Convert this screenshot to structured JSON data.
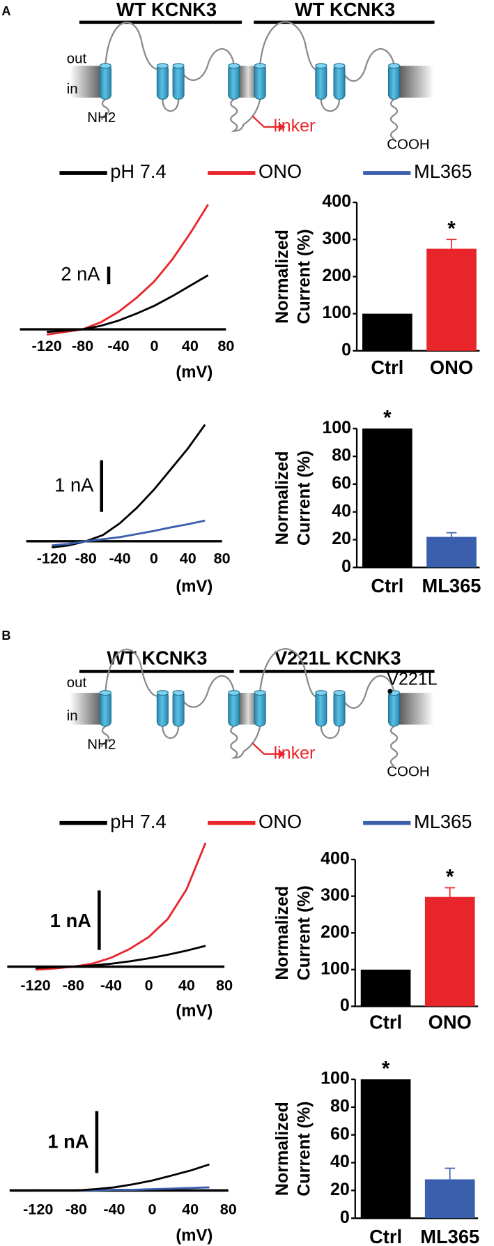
{
  "panels": [
    {
      "label": "A",
      "titles": [
        "WT KCNK3",
        "WT KCNK3"
      ],
      "diagram": {
        "out": "out",
        "in": "in",
        "n_term": "NH2",
        "linker": "linker",
        "c_term": "COOH"
      },
      "legend": [
        {
          "name": "pH 7.4",
          "color": "#000000"
        },
        {
          "name": "ONO",
          "color": "#e8252a"
        },
        {
          "name": "ML365",
          "color": "#3a5fad"
        }
      ]
    },
    {
      "label": "B",
      "titles": [
        "WT KCNK3",
        "V221L KCNK3"
      ],
      "diagram": {
        "out": "out",
        "in": "in",
        "n_term": "NH2",
        "linker": "linker",
        "c_term": "COOH",
        "mutation": "V221L"
      },
      "legend": [
        {
          "name": "pH 7.4",
          "color": "#000000"
        },
        {
          "name": "ONO",
          "color": "#e8252a"
        },
        {
          "name": "ML365",
          "color": "#3a5fad"
        }
      ]
    }
  ],
  "chart_data": [
    {
      "type": "iv",
      "xlabel": "(mV)",
      "x": [
        -120,
        -100,
        -80,
        -60,
        -40,
        -20,
        0,
        20,
        40,
        60
      ],
      "xlim": [
        -150,
        80
      ],
      "xticks": [
        -120,
        -80,
        -40,
        0,
        40,
        80
      ],
      "scale_bar": {
        "value": 2,
        "label": "2 nA"
      },
      "series": [
        {
          "color": "#e8252a",
          "values": [
            -0.6,
            -0.3,
            0,
            0.8,
            2,
            3.6,
            5.5,
            8,
            11,
            14.3
          ]
        },
        {
          "color": "#000000",
          "values": [
            -0.3,
            -0.15,
            0,
            0.4,
            1,
            1.8,
            2.7,
            3.8,
            5,
            6.2
          ]
        }
      ]
    },
    {
      "type": "bar",
      "ylabel": [
        "Normalized",
        "Current (%)"
      ],
      "categories": [
        "Ctrl",
        "ONO"
      ],
      "values": [
        100,
        275
      ],
      "errors": [
        null,
        25
      ],
      "colors": [
        "#000000",
        "#e8252a"
      ],
      "significance": "*",
      "ylim": [
        0,
        400
      ],
      "yticks": [
        0,
        100,
        200,
        300,
        400
      ]
    },
    {
      "type": "iv",
      "xlabel": "(mV)",
      "x": [
        -120,
        -100,
        -80,
        -60,
        -40,
        -20,
        0,
        20,
        40,
        60
      ],
      "xlim": [
        -150,
        80
      ],
      "xticks": [
        -120,
        -80,
        -40,
        0,
        40,
        80
      ],
      "scale_bar": {
        "value": 1,
        "label": "1 nA"
      },
      "series": [
        {
          "color": "#000000",
          "values": [
            -0.12,
            -0.08,
            0,
            0.12,
            0.35,
            0.65,
            1.0,
            1.4,
            1.8,
            2.26
          ]
        },
        {
          "color": "#3a5fad",
          "values": [
            -0.08,
            -0.05,
            0,
            0.04,
            0.08,
            0.14,
            0.2,
            0.27,
            0.33,
            0.4
          ]
        }
      ]
    },
    {
      "type": "bar",
      "ylabel": [
        "Normalized",
        "Current (%)"
      ],
      "categories": [
        "Ctrl",
        "ML365"
      ],
      "values": [
        100,
        22
      ],
      "errors": [
        null,
        3
      ],
      "colors": [
        "#000000",
        "#3a5fad"
      ],
      "significance": "*",
      "ylim": [
        0,
        100
      ],
      "yticks": [
        0,
        20,
        40,
        60,
        80,
        100
      ]
    },
    {
      "type": "iv",
      "xlabel": "(mV)",
      "x": [
        -120,
        -100,
        -80,
        -60,
        -40,
        -20,
        0,
        20,
        40,
        60
      ],
      "xlim": [
        -150,
        80
      ],
      "xticks": [
        -120,
        -80,
        -40,
        0,
        40,
        80
      ],
      "scale_bar": {
        "value": 1,
        "label": "1 nA"
      },
      "series": [
        {
          "color": "#e8252a",
          "values": [
            -0.05,
            -0.03,
            0,
            0.05,
            0.15,
            0.3,
            0.5,
            0.8,
            1.3,
            2.08
          ]
        },
        {
          "color": "#000000",
          "values": [
            -0.02,
            -0.01,
            0,
            0.02,
            0.05,
            0.09,
            0.14,
            0.2,
            0.27,
            0.35
          ]
        }
      ]
    },
    {
      "type": "bar",
      "ylabel": [
        "Normalized",
        "Current (%)"
      ],
      "categories": [
        "Ctrl",
        "ONO"
      ],
      "values": [
        100,
        298
      ],
      "errors": [
        null,
        25
      ],
      "colors": [
        "#000000",
        "#e8252a"
      ],
      "significance": "*",
      "ylim": [
        0,
        400
      ],
      "yticks": [
        0,
        100,
        200,
        300,
        400
      ]
    },
    {
      "type": "iv",
      "xlabel": "(mV)",
      "x": [
        -120,
        -100,
        -80,
        -60,
        -40,
        -20,
        0,
        20,
        40,
        60
      ],
      "xlim": [
        -150,
        80
      ],
      "xticks": [
        -120,
        -80,
        -40,
        0,
        40,
        80
      ],
      "scale_bar": {
        "value": 1,
        "label": "1 nA"
      },
      "series": [
        {
          "color": "#3a5fad",
          "values": [
            0,
            0,
            0,
            0,
            0.01,
            0.01,
            0.02,
            0.03,
            0.04,
            0.05
          ]
        },
        {
          "color": "#000000",
          "values": [
            0,
            0,
            0,
            0.02,
            0.05,
            0.1,
            0.16,
            0.24,
            0.32,
            0.42
          ]
        }
      ]
    },
    {
      "type": "bar",
      "ylabel": [
        "Normalized",
        "Current (%)"
      ],
      "categories": [
        "Ctrl",
        "ML365"
      ],
      "values": [
        100,
        28
      ],
      "errors": [
        null,
        8
      ],
      "colors": [
        "#000000",
        "#3a5fad"
      ],
      "significance": "*",
      "ylim": [
        0,
        100
      ],
      "yticks": [
        0,
        20,
        40,
        60,
        80,
        100
      ]
    }
  ]
}
